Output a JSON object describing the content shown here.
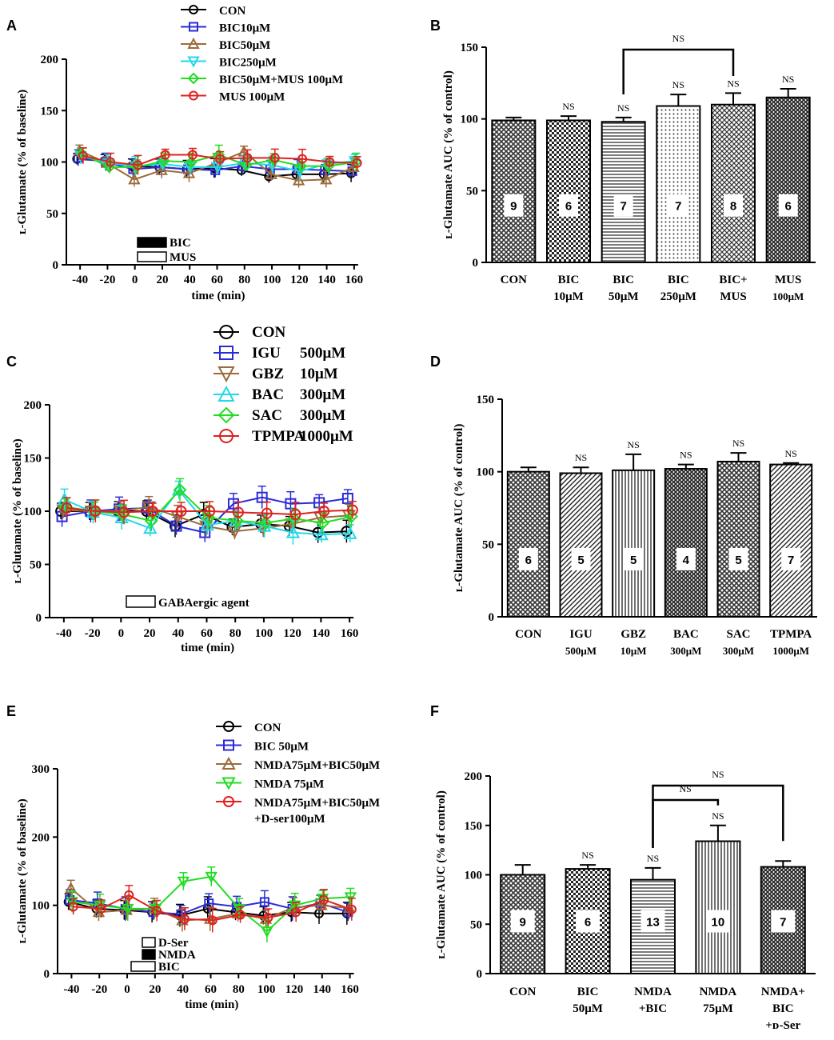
{
  "panels": [
    {
      "label": "A",
      "type": "line",
      "xlabel": "time (min)",
      "ylabel": "ʟ-Glutamate (% of baseline)",
      "x": [
        -40,
        -20,
        0,
        20,
        40,
        60,
        80,
        100,
        120,
        140,
        160
      ],
      "ylim": [
        0,
        200
      ],
      "yticks": [
        0,
        50,
        100,
        150,
        200
      ],
      "series": [
        {
          "name": "CON",
          "marker": "circle",
          "color": "#000000",
          "values": [
            103,
            101,
            96,
            95,
            93,
            94,
            92,
            86,
            88,
            88,
            89
          ]
        },
        {
          "name": "BIC10μM",
          "marker": "square",
          "color": "#2b2bd8",
          "values": [
            104,
            100,
            93,
            95,
            93,
            92,
            96,
            93,
            93,
            92,
            91
          ]
        },
        {
          "name": "BIC50μM",
          "marker": "triangle-up",
          "color": "#9c6b3a",
          "values": [
            111,
            99,
            83,
            92,
            89,
            99,
            110,
            88,
            82,
            83,
            95
          ]
        },
        {
          "name": "BIC250μM",
          "marker": "triangle-down",
          "color": "#22d8e8",
          "values": [
            106,
            99,
            96,
            98,
            95,
            95,
            99,
            97,
            91,
            98,
            101
          ]
        },
        {
          "name": "BIC50μM+MUS 100μM",
          "marker": "diamond",
          "color": "#22dd22",
          "values": [
            108,
            95,
            95,
            101,
            100,
            107,
            97,
            102,
            96,
            96,
            100
          ]
        },
        {
          "name": "MUS 100μM",
          "marker": "circle",
          "color": "#e02020",
          "values": [
            106,
            100,
            97,
            107,
            107,
            103,
            104,
            104,
            103,
            100,
            99
          ]
        }
      ],
      "bars": [
        {
          "name": "BIC",
          "fill": "#000000"
        },
        {
          "name": "MUS",
          "fill": "#ffffff"
        }
      ]
    },
    {
      "label": "B",
      "type": "bar",
      "ylabel": "ʟ-Glutamate AUC (% of control)",
      "ylim": [
        0,
        150
      ],
      "yticks": [
        0,
        50,
        100,
        150
      ],
      "categories": [
        "CON",
        "BIC\n10μM",
        "BIC\n50μM",
        "BIC\n250μM",
        "BIC+\nMUS",
        "MUS\n100μM"
      ],
      "values": [
        99,
        99,
        98,
        109,
        110,
        115
      ],
      "errors": [
        2,
        3,
        3,
        8,
        8,
        6
      ],
      "n": [
        "9",
        "6",
        "7",
        "7",
        "8",
        "6"
      ],
      "sig": [
        "",
        "NS",
        "NS",
        "NS",
        "NS",
        "NS"
      ],
      "brackets": [
        {
          "from": 2,
          "to": 4,
          "label": "NS"
        }
      ]
    },
    {
      "label": "C",
      "type": "line",
      "xlabel": "time (min)",
      "ylabel": "ʟ-Glutamate (% of baseline)",
      "x": [
        -40,
        -20,
        0,
        20,
        40,
        60,
        80,
        100,
        120,
        140,
        160
      ],
      "ylim": [
        0,
        200
      ],
      "yticks": [
        0,
        50,
        100,
        150,
        200
      ],
      "series": [
        {
          "name": "CON",
          "dose": "",
          "marker": "circle",
          "color": "#000000",
          "values": [
            100,
            100,
            100,
            100,
            86,
            97,
            85,
            88,
            86,
            80,
            81
          ]
        },
        {
          "name": "IGU",
          "dose": "500μM",
          "marker": "square",
          "color": "#2b2bd8",
          "values": [
            95,
            100,
            102,
            103,
            86,
            80,
            107,
            113,
            107,
            108,
            112
          ]
        },
        {
          "name": "GBZ",
          "dose": "10μM",
          "marker": "triangle-down",
          "color": "#9c6b3a",
          "values": [
            101,
            100,
            100,
            104,
            95,
            86,
            81,
            84,
            88,
            94,
            96
          ]
        },
        {
          "name": "BAC",
          "dose": "300μM",
          "marker": "triangle-up",
          "color": "#22d8e8",
          "values": [
            111,
            99,
            94,
            84,
            120,
            87,
            91,
            86,
            80,
            78,
            79
          ]
        },
        {
          "name": "SAC",
          "dose": "300μM",
          "marker": "diamond",
          "color": "#22dd22",
          "values": [
            104,
            100,
            97,
            91,
            120,
            94,
            91,
            89,
            93,
            89,
            95
          ]
        },
        {
          "name": "TPMPA",
          "dose": "1000μM",
          "marker": "circle",
          "color": "#e02020",
          "values": [
            103,
            100,
            99,
            100,
            100,
            100,
            99,
            98,
            97,
            100,
            101
          ]
        }
      ],
      "bars": [
        {
          "name": "GABAergic agent",
          "fill": "#ffffff"
        }
      ]
    },
    {
      "label": "D",
      "type": "bar",
      "ylabel": "ʟ-Glutamate AUC (% of  control)",
      "ylim": [
        0,
        150
      ],
      "yticks": [
        0,
        50,
        100,
        150
      ],
      "categories": [
        "CON",
        "IGU\n500μM",
        "GBZ\n10μM",
        "BAC\n300μM",
        "SAC\n300μM",
        "TPMPA\n1000μM"
      ],
      "values": [
        100,
        99,
        101,
        102,
        107,
        105
      ],
      "errors": [
        3,
        4,
        11,
        3,
        6,
        1
      ],
      "n": [
        "6",
        "5",
        "5",
        "4",
        "5",
        "7"
      ],
      "sig": [
        "",
        "NS",
        "NS",
        "NS",
        "NS",
        "NS"
      ],
      "brackets": []
    },
    {
      "label": "E",
      "type": "line",
      "xlabel": "time (min)",
      "ylabel": "ʟ-Glutamate (% of baseline)",
      "x": [
        -40,
        -20,
        0,
        20,
        40,
        60,
        80,
        100,
        120,
        140,
        160
      ],
      "ylim": [
        0,
        300
      ],
      "yticks": [
        0,
        100,
        200,
        300
      ],
      "series": [
        {
          "name": "CON",
          "marker": "circle",
          "color": "#000000",
          "values": [
            105,
            95,
            93,
            90,
            85,
            95,
            90,
            85,
            90,
            88,
            88
          ]
        },
        {
          "name": "BIC 50μM",
          "marker": "square",
          "color": "#2b2bd8",
          "values": [
            108,
            103,
            95,
            90,
            87,
            103,
            98,
            105,
            95,
            103,
            90
          ]
        },
        {
          "name": "NMDA75μM+BIC50μM",
          "marker": "triangle-up",
          "color": "#9c6b3a",
          "values": [
            125,
            90,
            93,
            95,
            78,
            80,
            88,
            80,
            97,
            100,
            96
          ]
        },
        {
          "name": "NMDA 75μM",
          "marker": "triangle-down",
          "color": "#22dd22",
          "values": [
            105,
            100,
            95,
            95,
            135,
            142,
            95,
            62,
            100,
            110,
            112
          ]
        },
        {
          "name": "NMDA75μM+BIC50μM",
          "name2": "+D-ser100μM",
          "marker": "circle",
          "color": "#e02020",
          "values": [
            98,
            95,
            115,
            92,
            80,
            78,
            86,
            82,
            90,
            108,
            94
          ]
        }
      ],
      "bars": [
        {
          "name": "D-Ser",
          "fill": "#ffffff"
        },
        {
          "name": "NMDA",
          "fill": "#000000"
        },
        {
          "name": "BIC",
          "fill": "#ffffff"
        }
      ]
    },
    {
      "label": "F",
      "type": "bar",
      "ylabel": "ʟ-Glutamate AUC (% of  control)",
      "ylim": [
        0,
        200
      ],
      "yticks": [
        0,
        50,
        100,
        150,
        200
      ],
      "categories": [
        "CON",
        "BIC\n50μM",
        "NMDA\n+BIC",
        "NMDA\n75μM",
        "NMDA+\nBIC\n+ᴅ-Ser"
      ],
      "values": [
        100,
        106,
        95,
        134,
        108
      ],
      "errors": [
        10,
        4,
        12,
        16,
        6
      ],
      "n": [
        "9",
        "6",
        "13",
        "10",
        "7"
      ],
      "sig": [
        "",
        "NS",
        "NS",
        "NS",
        ""
      ],
      "brackets": [
        {
          "from": 2,
          "to": 3,
          "label": "NS"
        },
        {
          "from": 2,
          "to": 4,
          "label": "NS"
        }
      ]
    }
  ]
}
